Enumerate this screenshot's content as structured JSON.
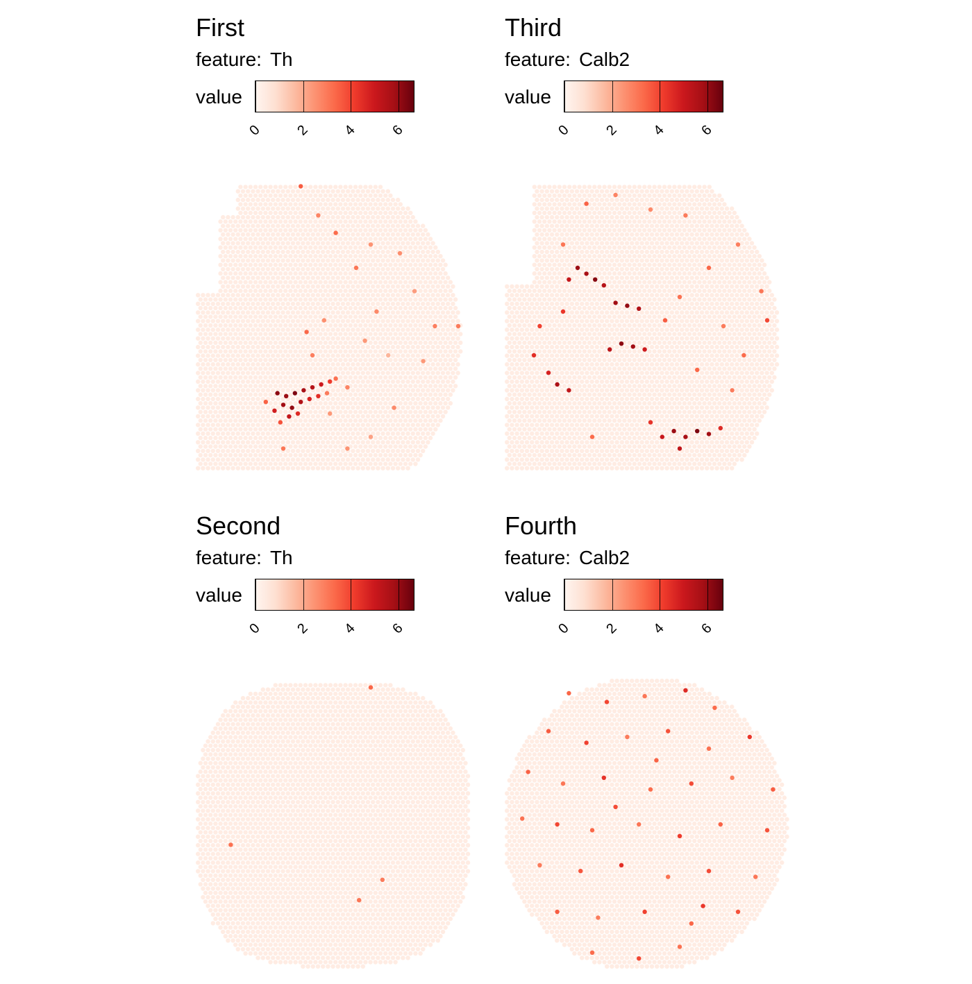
{
  "colors": {
    "scale": [
      "#fff5f0",
      "#fee0d2",
      "#fcbba1",
      "#fc9272",
      "#fb6a4a",
      "#ef3b2c",
      "#cb181d",
      "#a50f15",
      "#67000d"
    ]
  },
  "chart_data": [
    {
      "type": "scatter",
      "title": "First",
      "feature_prefix": "feature:",
      "feature": "Th",
      "legend_label": "value",
      "legend_ticks": [
        "0",
        "2",
        "4",
        "6"
      ],
      "value_range": [
        0,
        6.7
      ],
      "points": [
        {
          "x": 0.28,
          "y": 0.73,
          "v": 6.2
        },
        {
          "x": 0.31,
          "y": 0.74,
          "v": 6.0
        },
        {
          "x": 0.34,
          "y": 0.73,
          "v": 6.4
        },
        {
          "x": 0.37,
          "y": 0.72,
          "v": 5.8
        },
        {
          "x": 0.4,
          "y": 0.71,
          "v": 5.5
        },
        {
          "x": 0.43,
          "y": 0.7,
          "v": 5.0
        },
        {
          "x": 0.46,
          "y": 0.69,
          "v": 4.2
        },
        {
          "x": 0.3,
          "y": 0.77,
          "v": 5.9
        },
        {
          "x": 0.33,
          "y": 0.78,
          "v": 6.1
        },
        {
          "x": 0.36,
          "y": 0.76,
          "v": 5.6
        },
        {
          "x": 0.39,
          "y": 0.75,
          "v": 4.8
        },
        {
          "x": 0.42,
          "y": 0.74,
          "v": 4.5
        },
        {
          "x": 0.27,
          "y": 0.79,
          "v": 4.9
        },
        {
          "x": 0.32,
          "y": 0.81,
          "v": 5.2
        },
        {
          "x": 0.35,
          "y": 0.8,
          "v": 4.6
        },
        {
          "x": 0.29,
          "y": 0.83,
          "v": 3.8
        },
        {
          "x": 0.24,
          "y": 0.76,
          "v": 3.5
        },
        {
          "x": 0.48,
          "y": 0.68,
          "v": 3.2
        },
        {
          "x": 0.45,
          "y": 0.73,
          "v": 3.0
        },
        {
          "x": 0.52,
          "y": 0.71,
          "v": 2.8
        },
        {
          "x": 0.4,
          "y": 0.6,
          "v": 2.9
        },
        {
          "x": 0.38,
          "y": 0.52,
          "v": 3.4
        },
        {
          "x": 0.44,
          "y": 0.48,
          "v": 2.6
        },
        {
          "x": 0.58,
          "y": 0.55,
          "v": 2.4
        },
        {
          "x": 0.62,
          "y": 0.45,
          "v": 2.7
        },
        {
          "x": 0.55,
          "y": 0.3,
          "v": 3.1
        },
        {
          "x": 0.6,
          "y": 0.22,
          "v": 2.5
        },
        {
          "x": 0.48,
          "y": 0.18,
          "v": 3.3
        },
        {
          "x": 0.42,
          "y": 0.12,
          "v": 2.8
        },
        {
          "x": 0.36,
          "y": 0.02,
          "v": 3.6
        },
        {
          "x": 0.7,
          "y": 0.25,
          "v": 2.6
        },
        {
          "x": 0.75,
          "y": 0.38,
          "v": 2.3
        },
        {
          "x": 0.82,
          "y": 0.5,
          "v": 2.9
        },
        {
          "x": 0.78,
          "y": 0.62,
          "v": 2.4
        },
        {
          "x": 0.68,
          "y": 0.78,
          "v": 2.7
        },
        {
          "x": 0.6,
          "y": 0.88,
          "v": 2.2
        },
        {
          "x": 0.52,
          "y": 0.92,
          "v": 2.5
        },
        {
          "x": 0.9,
          "y": 0.5,
          "v": 3.0
        },
        {
          "x": 0.66,
          "y": 0.6,
          "v": 1.8
        },
        {
          "x": 0.3,
          "y": 0.92,
          "v": 3.1
        },
        {
          "x": 0.46,
          "y": 0.8,
          "v": 2.4
        }
      ]
    },
    {
      "type": "scatter",
      "title": "Third",
      "feature_prefix": "feature:",
      "feature": "Calb2",
      "legend_label": "value",
      "legend_ticks": [
        "0",
        "2",
        "4",
        "6"
      ],
      "value_range": [
        0,
        6.7
      ],
      "points": [
        {
          "x": 0.25,
          "y": 0.3,
          "v": 6.0
        },
        {
          "x": 0.28,
          "y": 0.32,
          "v": 5.8
        },
        {
          "x": 0.31,
          "y": 0.34,
          "v": 6.3
        },
        {
          "x": 0.34,
          "y": 0.36,
          "v": 5.5
        },
        {
          "x": 0.22,
          "y": 0.34,
          "v": 5.2
        },
        {
          "x": 0.38,
          "y": 0.42,
          "v": 5.9
        },
        {
          "x": 0.42,
          "y": 0.43,
          "v": 6.1
        },
        {
          "x": 0.46,
          "y": 0.44,
          "v": 5.6
        },
        {
          "x": 0.4,
          "y": 0.56,
          "v": 6.2
        },
        {
          "x": 0.44,
          "y": 0.57,
          "v": 5.9
        },
        {
          "x": 0.36,
          "y": 0.58,
          "v": 5.4
        },
        {
          "x": 0.48,
          "y": 0.58,
          "v": 5.0
        },
        {
          "x": 0.18,
          "y": 0.7,
          "v": 5.7
        },
        {
          "x": 0.22,
          "y": 0.72,
          "v": 5.3
        },
        {
          "x": 0.15,
          "y": 0.66,
          "v": 4.8
        },
        {
          "x": 0.58,
          "y": 0.86,
          "v": 6.0
        },
        {
          "x": 0.62,
          "y": 0.88,
          "v": 5.8
        },
        {
          "x": 0.66,
          "y": 0.86,
          "v": 6.4
        },
        {
          "x": 0.7,
          "y": 0.87,
          "v": 5.9
        },
        {
          "x": 0.54,
          "y": 0.88,
          "v": 5.1
        },
        {
          "x": 0.6,
          "y": 0.92,
          "v": 5.3
        },
        {
          "x": 0.74,
          "y": 0.85,
          "v": 4.6
        },
        {
          "x": 0.5,
          "y": 0.83,
          "v": 4.4
        },
        {
          "x": 0.1,
          "y": 0.6,
          "v": 4.5
        },
        {
          "x": 0.12,
          "y": 0.5,
          "v": 4.1
        },
        {
          "x": 0.2,
          "y": 0.45,
          "v": 4.3
        },
        {
          "x": 0.55,
          "y": 0.48,
          "v": 3.6
        },
        {
          "x": 0.6,
          "y": 0.4,
          "v": 3.2
        },
        {
          "x": 0.7,
          "y": 0.3,
          "v": 3.4
        },
        {
          "x": 0.75,
          "y": 0.5,
          "v": 3.0
        },
        {
          "x": 0.82,
          "y": 0.6,
          "v": 3.3
        },
        {
          "x": 0.9,
          "y": 0.48,
          "v": 4.0
        },
        {
          "x": 0.88,
          "y": 0.38,
          "v": 3.1
        },
        {
          "x": 0.8,
          "y": 0.22,
          "v": 2.9
        },
        {
          "x": 0.62,
          "y": 0.12,
          "v": 3.0
        },
        {
          "x": 0.5,
          "y": 0.1,
          "v": 2.7
        },
        {
          "x": 0.38,
          "y": 0.05,
          "v": 2.8
        },
        {
          "x": 0.28,
          "y": 0.08,
          "v": 3.5
        },
        {
          "x": 0.2,
          "y": 0.22,
          "v": 3.1
        },
        {
          "x": 0.66,
          "y": 0.65,
          "v": 3.4
        },
        {
          "x": 0.78,
          "y": 0.72,
          "v": 3.0
        },
        {
          "x": 0.3,
          "y": 0.88,
          "v": 3.3
        }
      ]
    },
    {
      "type": "scatter",
      "title": "Second",
      "feature_prefix": "feature:",
      "feature": "Th",
      "legend_label": "value",
      "legend_ticks": [
        "0",
        "2",
        "4",
        "6"
      ],
      "value_range": [
        0,
        6.7
      ],
      "points": [
        {
          "x": 0.6,
          "y": 0.03,
          "v": 3.4
        },
        {
          "x": 0.12,
          "y": 0.57,
          "v": 3.2
        },
        {
          "x": 0.64,
          "y": 0.69,
          "v": 3.0
        },
        {
          "x": 0.56,
          "y": 0.76,
          "v": 3.1
        }
      ]
    },
    {
      "type": "scatter",
      "title": "Fourth",
      "feature_prefix": "feature:",
      "feature": "Calb2",
      "legend_label": "value",
      "legend_ticks": [
        "0",
        "2",
        "4",
        "6"
      ],
      "value_range": [
        0,
        6.7
      ],
      "points": [
        {
          "x": 0.22,
          "y": 0.05,
          "v": 3.4
        },
        {
          "x": 0.35,
          "y": 0.08,
          "v": 4.0
        },
        {
          "x": 0.48,
          "y": 0.06,
          "v": 3.1
        },
        {
          "x": 0.62,
          "y": 0.04,
          "v": 4.6
        },
        {
          "x": 0.72,
          "y": 0.1,
          "v": 3.3
        },
        {
          "x": 0.15,
          "y": 0.18,
          "v": 3.6
        },
        {
          "x": 0.28,
          "y": 0.22,
          "v": 4.1
        },
        {
          "x": 0.42,
          "y": 0.2,
          "v": 3.0
        },
        {
          "x": 0.56,
          "y": 0.18,
          "v": 3.8
        },
        {
          "x": 0.7,
          "y": 0.24,
          "v": 3.2
        },
        {
          "x": 0.84,
          "y": 0.2,
          "v": 4.3
        },
        {
          "x": 0.08,
          "y": 0.32,
          "v": 3.5
        },
        {
          "x": 0.2,
          "y": 0.36,
          "v": 3.1
        },
        {
          "x": 0.34,
          "y": 0.34,
          "v": 4.4
        },
        {
          "x": 0.5,
          "y": 0.38,
          "v": 3.3
        },
        {
          "x": 0.64,
          "y": 0.36,
          "v": 3.9
        },
        {
          "x": 0.78,
          "y": 0.34,
          "v": 3.0
        },
        {
          "x": 0.92,
          "y": 0.38,
          "v": 3.6
        },
        {
          "x": 0.06,
          "y": 0.48,
          "v": 3.2
        },
        {
          "x": 0.18,
          "y": 0.5,
          "v": 4.0
        },
        {
          "x": 0.3,
          "y": 0.52,
          "v": 3.4
        },
        {
          "x": 0.46,
          "y": 0.5,
          "v": 3.1
        },
        {
          "x": 0.6,
          "y": 0.54,
          "v": 4.2
        },
        {
          "x": 0.74,
          "y": 0.5,
          "v": 3.5
        },
        {
          "x": 0.9,
          "y": 0.52,
          "v": 3.8
        },
        {
          "x": 0.12,
          "y": 0.64,
          "v": 3.0
        },
        {
          "x": 0.26,
          "y": 0.66,
          "v": 3.7
        },
        {
          "x": 0.4,
          "y": 0.64,
          "v": 4.5
        },
        {
          "x": 0.56,
          "y": 0.68,
          "v": 3.2
        },
        {
          "x": 0.7,
          "y": 0.66,
          "v": 3.9
        },
        {
          "x": 0.86,
          "y": 0.68,
          "v": 3.1
        },
        {
          "x": 0.18,
          "y": 0.8,
          "v": 3.6
        },
        {
          "x": 0.32,
          "y": 0.82,
          "v": 3.0
        },
        {
          "x": 0.48,
          "y": 0.8,
          "v": 4.1
        },
        {
          "x": 0.64,
          "y": 0.84,
          "v": 3.4
        },
        {
          "x": 0.8,
          "y": 0.8,
          "v": 3.8
        },
        {
          "x": 0.3,
          "y": 0.94,
          "v": 3.3
        },
        {
          "x": 0.46,
          "y": 0.96,
          "v": 4.0
        },
        {
          "x": 0.6,
          "y": 0.92,
          "v": 3.2
        },
        {
          "x": 0.68,
          "y": 0.78,
          "v": 4.3
        },
        {
          "x": 0.52,
          "y": 0.28,
          "v": 3.5
        },
        {
          "x": 0.38,
          "y": 0.44,
          "v": 3.9
        }
      ]
    }
  ]
}
